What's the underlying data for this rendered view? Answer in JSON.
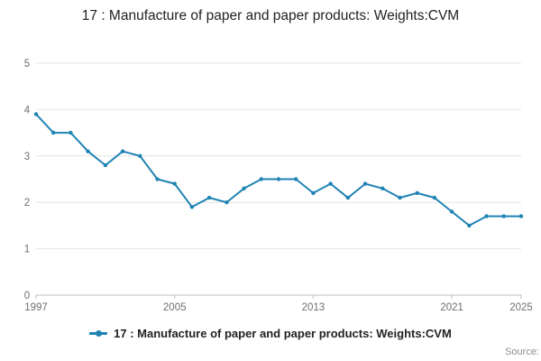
{
  "title": "17 : Manufacture of paper and paper products: Weights:CVM",
  "legend": {
    "label": "17 : Manufacture of paper and paper products: Weights:CVM"
  },
  "source": "Source:",
  "colors": {
    "line": "#1f83b4",
    "grid": "#e4e4e4",
    "axis": "#bdbdbd",
    "tick_text": "#6f6f6f"
  },
  "chart_data": {
    "type": "line",
    "title": "17 : Manufacture of paper and paper products: Weights:CVM",
    "xlabel": "",
    "ylabel": "",
    "x": [
      1997,
      1998,
      1999,
      2000,
      2001,
      2002,
      2003,
      2004,
      2005,
      2006,
      2007,
      2008,
      2009,
      2010,
      2011,
      2012,
      2013,
      2014,
      2015,
      2016,
      2017,
      2018,
      2019,
      2020,
      2021,
      2022,
      2023,
      2024,
      2025
    ],
    "values": [
      3.9,
      3.5,
      3.5,
      3.1,
      2.8,
      3.1,
      3.0,
      2.5,
      2.4,
      1.9,
      2.1,
      2.0,
      2.3,
      2.5,
      2.5,
      2.5,
      2.2,
      2.4,
      2.1,
      2.4,
      2.3,
      2.1,
      2.2,
      2.1,
      1.8,
      1.5,
      1.7,
      1.7,
      1.7
    ],
    "ylim": [
      0,
      5
    ],
    "yticks": [
      0,
      1,
      2,
      3,
      4,
      5
    ],
    "xticks": [
      1997,
      2005,
      2013,
      2021,
      2025
    ],
    "grid": true,
    "legend_position": "bottom"
  }
}
